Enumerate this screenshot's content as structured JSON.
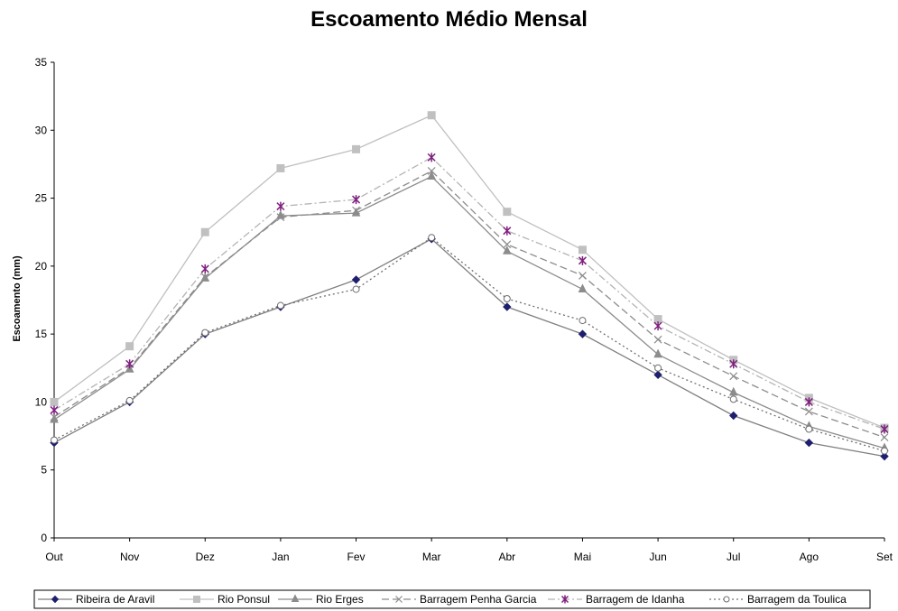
{
  "chart_data": {
    "type": "line",
    "title": "Escoamento Médio Mensal",
    "xlabel": "",
    "ylabel": "Escoamento (mm)",
    "ylim": [
      0,
      35
    ],
    "yticks": [
      "0",
      "5",
      "10",
      "15",
      "20",
      "25",
      "30",
      "35"
    ],
    "grid": false,
    "legend_position": "bottom",
    "categories": [
      "Out",
      "Nov",
      "Dez",
      "Jan",
      "Fev",
      "Mar",
      "Abr",
      "Mai",
      "Jun",
      "Jul",
      "Ago",
      "Set"
    ],
    "series": [
      {
        "name": "Ribeira de Aravil",
        "color": "#7f7f7f",
        "marker_color": "#1f1f6f",
        "marker": "diamond",
        "dash": "",
        "values": [
          7.0,
          10.0,
          15.0,
          17.0,
          19.0,
          22.0,
          17.0,
          15.0,
          12.0,
          9.0,
          7.0,
          6.0
        ]
      },
      {
        "name": "Rio Ponsul",
        "color": "#c0c0c0",
        "marker_color": "#c0c0c0",
        "marker": "square",
        "dash": "",
        "values": [
          10.0,
          14.1,
          22.5,
          27.2,
          28.6,
          31.1,
          24.0,
          21.2,
          16.1,
          13.1,
          10.3,
          8.1
        ]
      },
      {
        "name": "Rio Erges",
        "color": "#8c8c8c",
        "marker_color": "#8c8c8c",
        "marker": "triangle",
        "dash": "",
        "values": [
          8.7,
          12.4,
          19.1,
          23.7,
          23.9,
          26.6,
          21.1,
          18.3,
          13.5,
          10.7,
          8.2,
          6.6
        ]
      },
      {
        "name": "Barragem Penha Garcia",
        "color": "#8c8c8c",
        "marker_color": "#8c8c8c",
        "marker": "x",
        "dash": "8,4",
        "values": [
          8.9,
          12.5,
          19.2,
          23.6,
          24.1,
          27.0,
          21.6,
          19.3,
          14.6,
          11.9,
          9.3,
          7.4
        ]
      },
      {
        "name": "Barragem de Idanha",
        "color": "#b4b4b4",
        "marker_color": "#7f1f7f",
        "marker": "star",
        "dash": "8,3,2,3",
        "values": [
          9.4,
          12.8,
          19.8,
          24.4,
          24.9,
          28.0,
          22.6,
          20.4,
          15.6,
          12.8,
          10.0,
          8.0
        ]
      },
      {
        "name": "Barragem da Toulica",
        "color": "#6f6f6f",
        "marker_color": "#6f6f6f",
        "marker": "circle",
        "dash": "2,3",
        "values": [
          7.2,
          10.1,
          15.1,
          17.1,
          18.3,
          22.1,
          17.6,
          16.0,
          12.5,
          10.2,
          8.0,
          6.4
        ]
      }
    ]
  }
}
